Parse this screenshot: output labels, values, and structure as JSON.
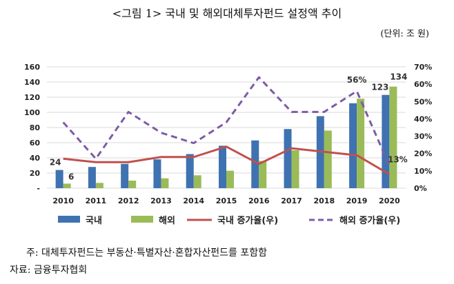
{
  "title": "<그림 1> 국내 및 해외대체투자펀드 설정액 추이",
  "unit": "(단위: 조 원)",
  "footnote": "주: 대체투자펀드는 부동산·특별자산·혼합자산펀드를 포함함",
  "source": "자료: 금융투자협회",
  "colors": {
    "domestic_bar": "#3F72B0",
    "overseas_bar": "#9BBB59",
    "domestic_line": "#C0504D",
    "overseas_line": "#7D5BA6",
    "grid": "#D9D9D9"
  },
  "chart_data": {
    "type": "bar",
    "categories": [
      "2010",
      "2011",
      "2012",
      "2013",
      "2014",
      "2015",
      "2016",
      "2017",
      "2018",
      "2019",
      "2020"
    ],
    "y_left": {
      "range": [
        0,
        160
      ],
      "ticks": [
        "-",
        "20",
        "40",
        "60",
        "80",
        "100",
        "120",
        "140",
        "160"
      ]
    },
    "y_right": {
      "range": [
        0,
        70
      ],
      "ticks": [
        "0%",
        "10%",
        "20%",
        "30%",
        "40%",
        "50%",
        "60%",
        "70%"
      ]
    },
    "grid": true,
    "legend_position": "bottom",
    "series": [
      {
        "name": "국내",
        "kind": "bar",
        "axis": "left",
        "values": [
          24,
          28,
          32,
          38,
          45,
          56,
          63,
          78,
          95,
          112,
          123
        ]
      },
      {
        "name": "해외",
        "kind": "bar",
        "axis": "left",
        "values": [
          6,
          7,
          10,
          13,
          17,
          23,
          36,
          50,
          76,
          118,
          134
        ]
      },
      {
        "name": "국내 증가율(우)",
        "kind": "line",
        "axis": "right",
        "values": [
          17,
          15,
          15,
          18,
          18,
          24,
          14,
          23,
          21,
          19,
          8
        ]
      },
      {
        "name": "해외 증가율(우)",
        "kind": "line",
        "axis": "right",
        "dashed": true,
        "values": [
          38,
          17,
          44,
          32,
          26,
          38,
          64,
          44,
          44,
          56,
          13
        ]
      }
    ],
    "data_labels": [
      {
        "text": "24",
        "series": 0,
        "index": 0
      },
      {
        "text": "6",
        "series": 1,
        "index": 0
      },
      {
        "text": "123",
        "series": 0,
        "index": 10
      },
      {
        "text": "134",
        "series": 1,
        "index": 10
      },
      {
        "text": "56%",
        "series": 3,
        "index": 9
      },
      {
        "text": "13%",
        "series": 3,
        "index": 10
      }
    ]
  }
}
